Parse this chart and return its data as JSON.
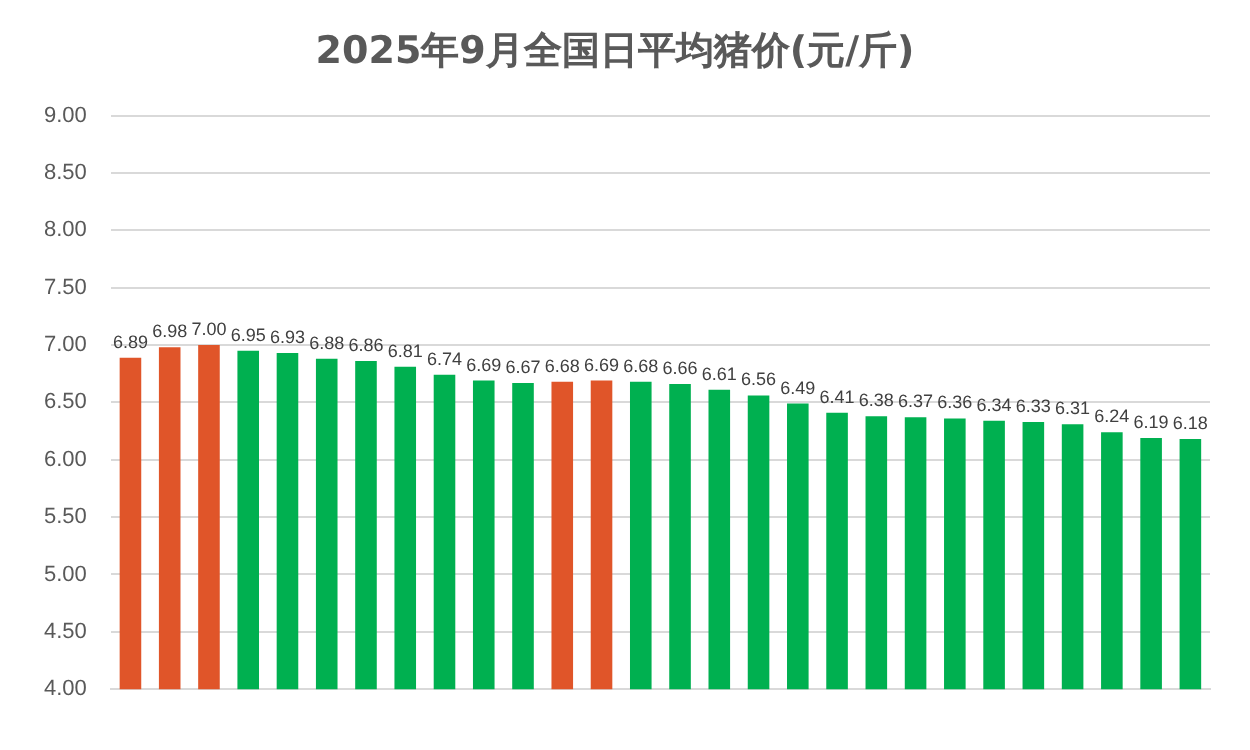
{
  "chart_data": {
    "type": "bar",
    "title": "2025年9月全国日平均猪价(元/斤)",
    "categories": [
      null,
      null,
      null,
      null,
      null,
      null,
      null,
      null,
      null,
      null,
      null,
      null,
      null,
      null,
      null,
      null,
      null,
      null,
      null,
      null,
      null,
      null,
      null,
      null,
      null,
      null,
      null,
      null
    ],
    "values": [
      6.89,
      6.98,
      7.0,
      6.95,
      6.93,
      6.88,
      6.86,
      6.81,
      6.74,
      6.69,
      6.67,
      6.68,
      6.69,
      6.68,
      6.66,
      6.61,
      6.56,
      6.49,
      6.41,
      6.38,
      6.37,
      6.36,
      6.34,
      6.33,
      6.31,
      6.24,
      6.19,
      6.18
    ],
    "colors": [
      "#e05529",
      "#e05529",
      "#e05529",
      "#00b050",
      "#00b050",
      "#00b050",
      "#00b050",
      "#00b050",
      "#00b050",
      "#00b050",
      "#00b050",
      "#e05529",
      "#e05529",
      "#00b050",
      "#00b050",
      "#00b050",
      "#00b050",
      "#00b050",
      "#00b050",
      "#00b050",
      "#00b050",
      "#00b050",
      "#00b050",
      "#00b050",
      "#00b050",
      "#00b050",
      "#00b050",
      "#00b050"
    ],
    "value_labels": [
      "6.89",
      "6.98",
      "7.00",
      "6.95",
      "6.93",
      "6.88",
      "6.86",
      "6.81",
      "6.74",
      "6.69",
      "6.67",
      "6.68",
      "6.69",
      "6.68",
      "6.66",
      "6.61",
      "6.56",
      "6.49",
      "6.41",
      "6.38",
      "6.37",
      "6.36",
      "6.34",
      "6.33",
      "6.31",
      "6.24",
      "6.19",
      "6.18"
    ],
    "ylim": [
      4,
      9
    ],
    "yticks": [
      {
        "value": 4,
        "label": "4.00"
      },
      {
        "value": 4.5,
        "label": "4.50"
      },
      {
        "value": 5,
        "label": "5.00"
      },
      {
        "value": 5.5,
        "label": "5.50"
      },
      {
        "value": 6,
        "label": "6.00"
      },
      {
        "value": 6.5,
        "label": "6.50"
      },
      {
        "value": 7,
        "label": "7.00"
      },
      {
        "value": 7.5,
        "label": "7.50"
      },
      {
        "value": 8,
        "label": "8.00"
      },
      {
        "value": 8.5,
        "label": "8.50"
      },
      {
        "value": 9,
        "label": "9.00"
      }
    ],
    "grid": "y",
    "legend": false
  }
}
